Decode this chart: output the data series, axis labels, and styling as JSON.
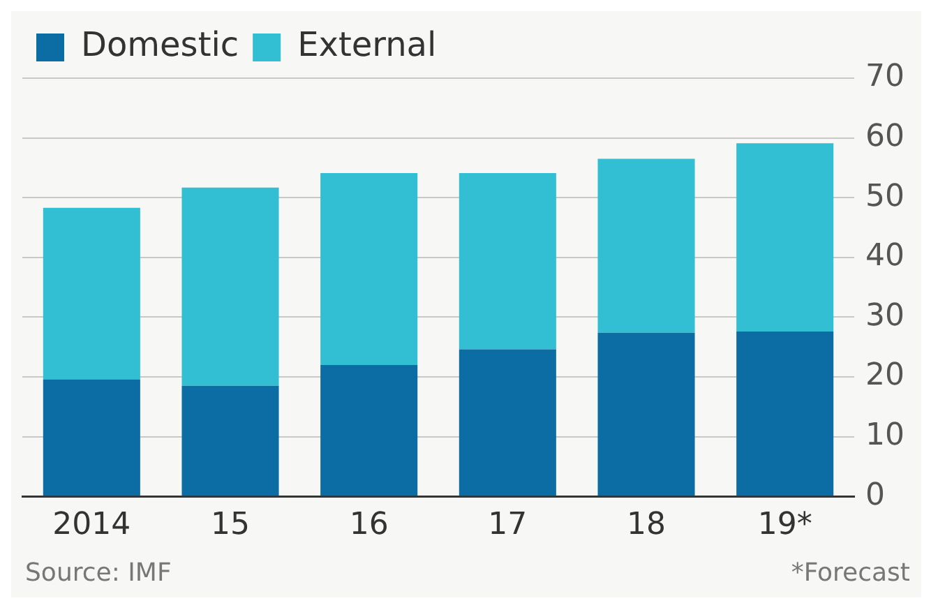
{
  "chart_data": {
    "type": "bar",
    "stacked": true,
    "categories": [
      "2014",
      "15",
      "16",
      "17",
      "18",
      "19*"
    ],
    "series": [
      {
        "name": "Domestic",
        "color": "#0b6da4",
        "values": [
          19.6,
          18.5,
          22,
          24.6,
          27.4,
          27.6
        ]
      },
      {
        "name": "External",
        "color": "#33bfd3",
        "values": [
          28.7,
          33.2,
          32.1,
          29.5,
          29.1,
          31.5
        ]
      }
    ],
    "ylim": [
      0,
      70
    ],
    "yticks": [
      0,
      10,
      20,
      30,
      40,
      50,
      60,
      70
    ],
    "grid": "y",
    "legend": "top left",
    "annotations": [
      "Source: IMF",
      "*Forecast"
    ]
  }
}
